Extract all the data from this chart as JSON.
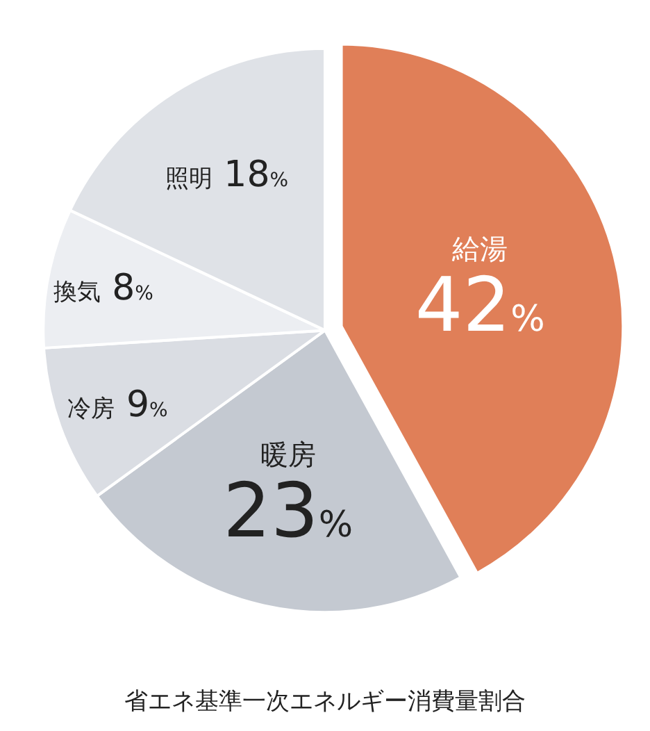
{
  "chart_data": {
    "type": "pie",
    "title": "省エネ基準一次エネルギー消費量割合",
    "categories": [
      "給湯",
      "暖房",
      "冷房",
      "換気",
      "照明"
    ],
    "values": [
      42,
      23,
      9,
      8,
      18
    ],
    "value_labels": [
      "42%",
      "23%",
      "9%",
      "8%",
      "18%"
    ],
    "colors": [
      "#e07f58",
      "#c4c9d1",
      "#dadde3",
      "#eceef2",
      "#dfe2e7"
    ],
    "legend": false
  }
}
